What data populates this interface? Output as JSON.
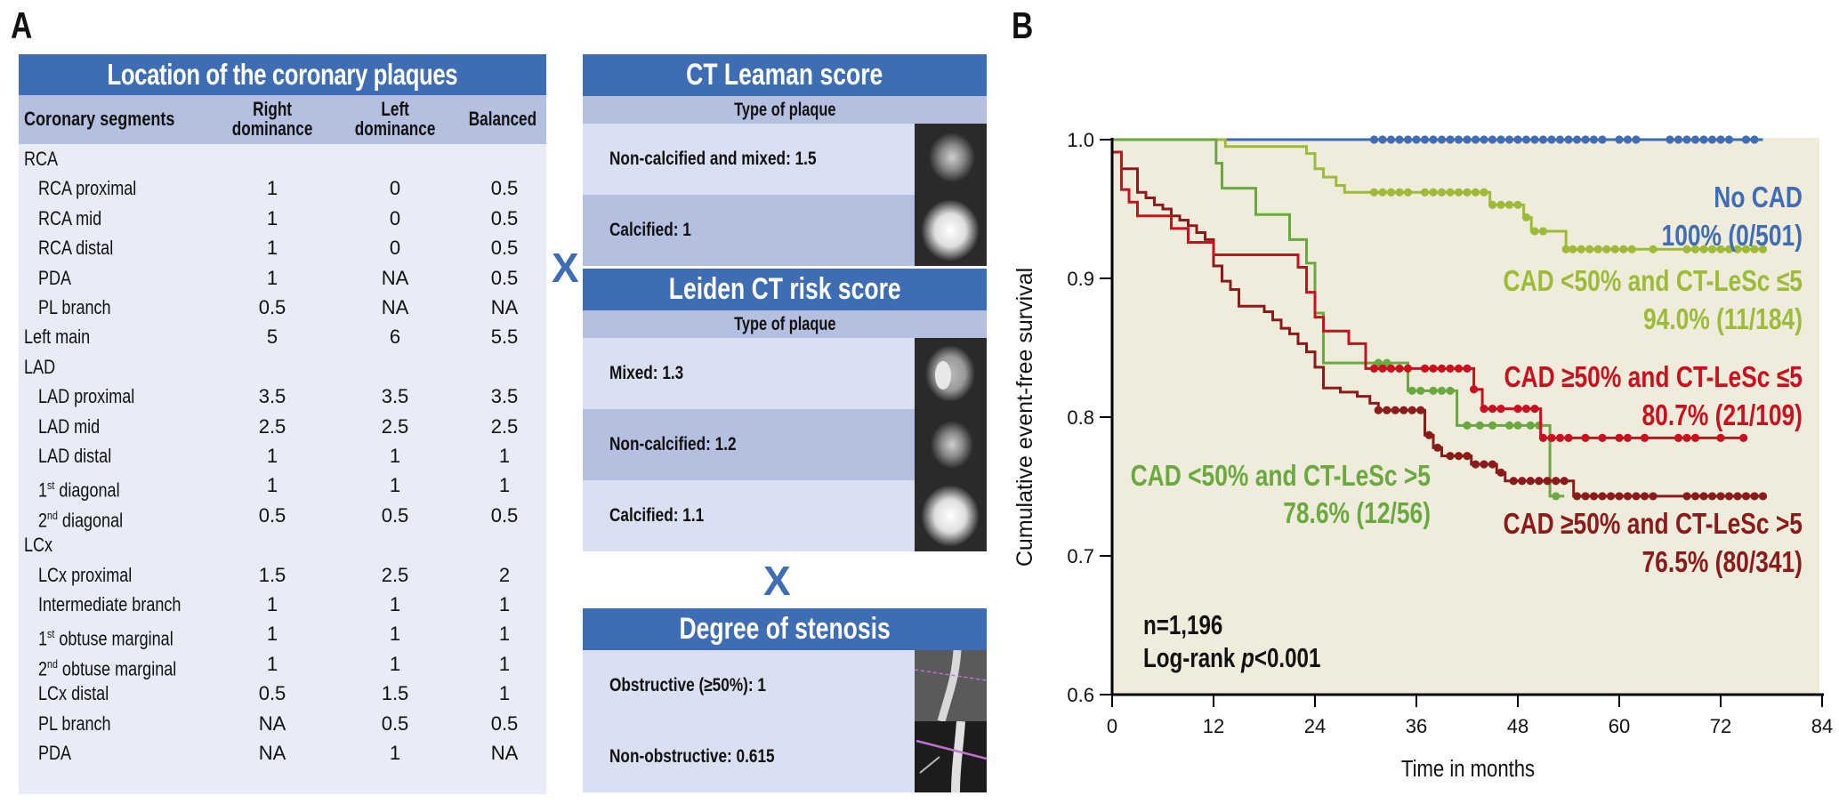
{
  "panels": {
    "a_label": "A",
    "b_label": "B"
  },
  "location_table": {
    "title": "Location of the coronary plaques",
    "columns": [
      "Coronary segments",
      "Right dominance",
      "Left dominance",
      "Balanced"
    ],
    "col_right": [
      "Right",
      "dominance"
    ],
    "col_left": [
      "Left",
      "dominance"
    ],
    "rows": [
      {
        "label": "RCA",
        "indent": 0,
        "right": "",
        "left": "",
        "balanced": ""
      },
      {
        "label": "RCA proximal",
        "indent": 1,
        "right": "1",
        "left": "0",
        "balanced": "0.5"
      },
      {
        "label": "RCA mid",
        "indent": 1,
        "right": "1",
        "left": "0",
        "balanced": "0.5"
      },
      {
        "label": "RCA distal",
        "indent": 1,
        "right": "1",
        "left": "0",
        "balanced": "0.5"
      },
      {
        "label": "PDA",
        "indent": 1,
        "right": "1",
        "left": "NA",
        "balanced": "0.5"
      },
      {
        "label": "PL branch",
        "indent": 1,
        "right": "0.5",
        "left": "NA",
        "balanced": "NA"
      },
      {
        "label": "Left main",
        "indent": 0,
        "right": "5",
        "left": "6",
        "balanced": "5.5"
      },
      {
        "label": "LAD",
        "indent": 0,
        "right": "",
        "left": "",
        "balanced": ""
      },
      {
        "label": "LAD proximal",
        "indent": 1,
        "right": "3.5",
        "left": "3.5",
        "balanced": "3.5"
      },
      {
        "label": "LAD mid",
        "indent": 1,
        "right": "2.5",
        "left": "2.5",
        "balanced": "2.5"
      },
      {
        "label": "LAD distal",
        "indent": 1,
        "right": "1",
        "left": "1",
        "balanced": "1"
      },
      {
        "label": "1",
        "sup": "st",
        "rest": " diagonal",
        "indent": 1,
        "right": "1",
        "left": "1",
        "balanced": "1"
      },
      {
        "label": "2",
        "sup": "nd",
        "rest": " diagonal",
        "indent": 1,
        "right": "0.5",
        "left": "0.5",
        "balanced": "0.5"
      },
      {
        "label": "LCx",
        "indent": 0,
        "right": "",
        "left": "",
        "balanced": ""
      },
      {
        "label": "LCx proximal",
        "indent": 1,
        "right": "1.5",
        "left": "2.5",
        "balanced": "2"
      },
      {
        "label": "Intermediate branch",
        "indent": 1,
        "right": "1",
        "left": "1",
        "balanced": "1"
      },
      {
        "label": "1",
        "sup": "st",
        "rest": " obtuse marginal",
        "indent": 1,
        "right": "1",
        "left": "1",
        "balanced": "1"
      },
      {
        "label": "2",
        "sup": "nd",
        "rest": " obtuse marginal",
        "indent": 1,
        "right": "1",
        "left": "1",
        "balanced": "1"
      },
      {
        "label": "LCx distal",
        "indent": 1,
        "right": "0.5",
        "left": "1.5",
        "balanced": "1"
      },
      {
        "label": "PL branch",
        "indent": 1,
        "right": "NA",
        "left": "0.5",
        "balanced": "0.5"
      },
      {
        "label": "PDA",
        "indent": 1,
        "right": "NA",
        "left": "1",
        "balanced": "NA"
      }
    ]
  },
  "multiply_symbol": "X",
  "ct_leaman": {
    "title": "CT Leaman score",
    "subhead": "Type of plaque",
    "rows": [
      "Non-calcified and mixed: 1.5",
      "Calcified: 1"
    ]
  },
  "leiden": {
    "title": "Leiden CT risk score",
    "subhead": "Type of plaque",
    "rows": [
      "Mixed: 1.3",
      "Non-calcified: 1.2",
      "Calcified: 1.1"
    ]
  },
  "stenosis": {
    "title": "Degree of stenosis",
    "rows": [
      "Obstructive (≥50%): 1",
      "Non-obstructive: 0.615"
    ]
  },
  "chart_data": {
    "type": "line",
    "subtype": "kaplan-meier step",
    "title": "",
    "xlabel": "Time in months",
    "ylabel": "Cumulative event-free survival",
    "xlim": [
      0,
      84
    ],
    "ylim": [
      0.6,
      1.0
    ],
    "xticks": [
      0,
      12,
      24,
      36,
      48,
      60,
      72,
      84
    ],
    "yticks": [
      "0.6",
      "0.7",
      "0.8",
      "0.9",
      "1.0"
    ],
    "background": "#f0ecdc",
    "annotations": [
      "n=1,196",
      "Log-rank p<0.001"
    ],
    "annotation_n": "n=1,196",
    "annotation_p_prefix": "Log-rank ",
    "annotation_p_italic": "p",
    "annotation_p_suffix": "<0.001",
    "series": [
      {
        "name": "No CAD",
        "summary": "100% (0/501)",
        "color": "#3f6db3",
        "steps": [
          [
            0,
            1.0
          ],
          [
            77,
            1.0
          ]
        ],
        "censored": [
          31,
          32,
          33,
          34,
          35,
          36,
          37,
          38,
          39,
          40,
          41,
          42,
          43,
          44,
          45,
          46,
          47,
          48,
          49,
          50,
          51,
          52,
          53,
          54,
          55,
          56,
          57,
          58,
          60,
          61,
          62,
          66,
          67,
          68,
          69,
          70,
          71,
          72,
          73,
          75,
          76
        ]
      },
      {
        "name": "CAD <50% and CT-LeSc ≤5",
        "summary": "94.0% (11/184)",
        "color": "#9dbb38",
        "steps": [
          [
            0,
            1.0
          ],
          [
            13.4,
            0.995
          ],
          [
            23,
            0.99
          ],
          [
            24,
            0.979
          ],
          [
            25,
            0.973
          ],
          [
            26.5,
            0.967
          ],
          [
            27.5,
            0.962
          ],
          [
            44.7,
            0.953
          ],
          [
            48.7,
            0.944
          ],
          [
            49.6,
            0.934
          ],
          [
            53.7,
            0.921
          ],
          [
            77,
            0.921
          ]
        ],
        "censored": [
          31,
          32,
          33,
          34,
          35,
          37,
          38,
          39,
          40,
          41,
          42,
          43,
          44,
          45,
          46,
          47,
          48,
          49,
          50,
          51,
          53.7,
          54.5,
          55.5,
          56.5,
          57.5,
          58.5,
          59.5,
          60.5,
          61.5,
          64,
          68,
          69,
          70,
          71,
          72,
          73,
          74,
          75,
          76,
          77
        ]
      },
      {
        "name": "CAD ≥50% and CT-LeSc ≤5",
        "summary": "80.7% (21/109)",
        "color": "#c8101e",
        "steps": [
          [
            0,
            0.991
          ],
          [
            1.1,
            0.964
          ],
          [
            2,
            0.955
          ],
          [
            3,
            0.945
          ],
          [
            7,
            0.936
          ],
          [
            9,
            0.926
          ],
          [
            12,
            0.917
          ],
          [
            22,
            0.908
          ],
          [
            23,
            0.89
          ],
          [
            24,
            0.872
          ],
          [
            25,
            0.862
          ],
          [
            28,
            0.853
          ],
          [
            30,
            0.835
          ],
          [
            42.8,
            0.82
          ],
          [
            43.8,
            0.806
          ],
          [
            50.7,
            0.785
          ],
          [
            75,
            0.785
          ]
        ],
        "censored": [
          31,
          32,
          33,
          34,
          35,
          37,
          38,
          39,
          40,
          41,
          42,
          42.8,
          44,
          45,
          46,
          48,
          49,
          50,
          51,
          52,
          53,
          54,
          56,
          58,
          60,
          61,
          63,
          67,
          68,
          69,
          72,
          74.7
        ]
      },
      {
        "name": "CAD <50% and CT-LeSc >5",
        "summary": "78.6% (12/56)",
        "color": "#6aa840",
        "steps": [
          [
            0,
            1.0
          ],
          [
            12.3,
            0.983
          ],
          [
            13,
            0.965
          ],
          [
            17,
            0.946
          ],
          [
            21,
            0.928
          ],
          [
            23,
            0.911
          ],
          [
            24,
            0.875
          ],
          [
            25,
            0.839
          ],
          [
            35,
            0.819
          ],
          [
            40.8,
            0.794
          ],
          [
            51.8,
            0.743
          ],
          [
            53.5,
            0.743
          ]
        ],
        "censored": [
          31.5,
          32.5,
          35.5,
          36.5,
          38,
          39,
          40,
          42,
          43.5,
          45,
          47,
          48,
          49.5,
          50.5,
          52.5
        ]
      },
      {
        "name": "CAD ≥50% and CT-LeSc >5",
        "summary": "76.5% (80/341)",
        "color": "#8b1a1a",
        "steps": [
          [
            0,
            0.991
          ],
          [
            1.1,
            0.979
          ],
          [
            3,
            0.962
          ],
          [
            4,
            0.958
          ],
          [
            5,
            0.953
          ],
          [
            6,
            0.95
          ],
          [
            7,
            0.945
          ],
          [
            8,
            0.942
          ],
          [
            9,
            0.938
          ],
          [
            10,
            0.933
          ],
          [
            11,
            0.928
          ],
          [
            12,
            0.909
          ],
          [
            13,
            0.898
          ],
          [
            14,
            0.892
          ],
          [
            15,
            0.88
          ],
          [
            18,
            0.876
          ],
          [
            19,
            0.87
          ],
          [
            20,
            0.864
          ],
          [
            21,
            0.86
          ],
          [
            22,
            0.853
          ],
          [
            23,
            0.847
          ],
          [
            24,
            0.836
          ],
          [
            25,
            0.821
          ],
          [
            27,
            0.818
          ],
          [
            29,
            0.815
          ],
          [
            30.5,
            0.81
          ],
          [
            31.5,
            0.805
          ],
          [
            37,
            0.787
          ],
          [
            38,
            0.778
          ],
          [
            39,
            0.772
          ],
          [
            42.5,
            0.766
          ],
          [
            45.5,
            0.76
          ],
          [
            46.5,
            0.754
          ],
          [
            54.6,
            0.743
          ],
          [
            77,
            0.743
          ]
        ],
        "censored": [
          31.5,
          32.5,
          33.5,
          34.5,
          35.5,
          36.5,
          37.5,
          38.5,
          40,
          41,
          42,
          43,
          44,
          45,
          46,
          47.5,
          48.5,
          49.5,
          50.5,
          51.5,
          52.5,
          53.5,
          55,
          56,
          57,
          58,
          59,
          60,
          61,
          62,
          63,
          64,
          68,
          69,
          70,
          71,
          72,
          73,
          74,
          75,
          76,
          77
        ]
      }
    ]
  }
}
